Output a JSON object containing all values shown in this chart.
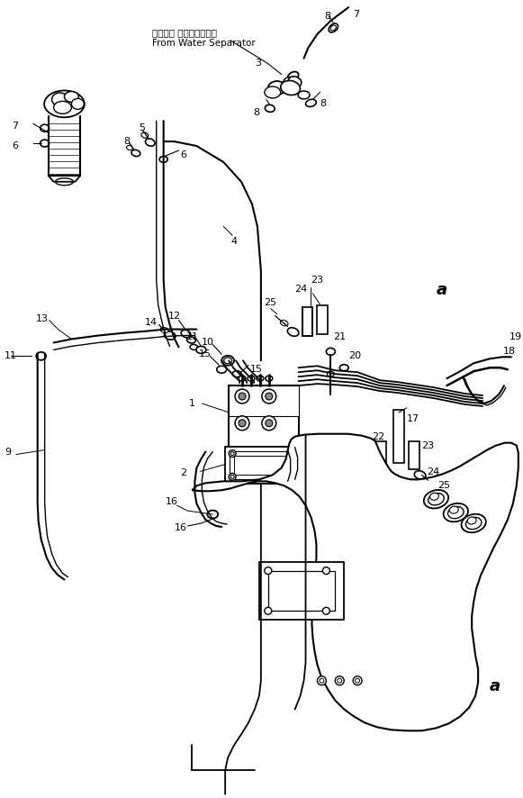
{
  "background_color": "#ffffff",
  "line_color": "#000000",
  "figsize": [
    5.81,
    8.86
  ],
  "dpi": 100,
  "text": {
    "water_sep_ja": "ウォータ セパレータから",
    "water_sep_en": "From Water Separator",
    "a": "a"
  }
}
